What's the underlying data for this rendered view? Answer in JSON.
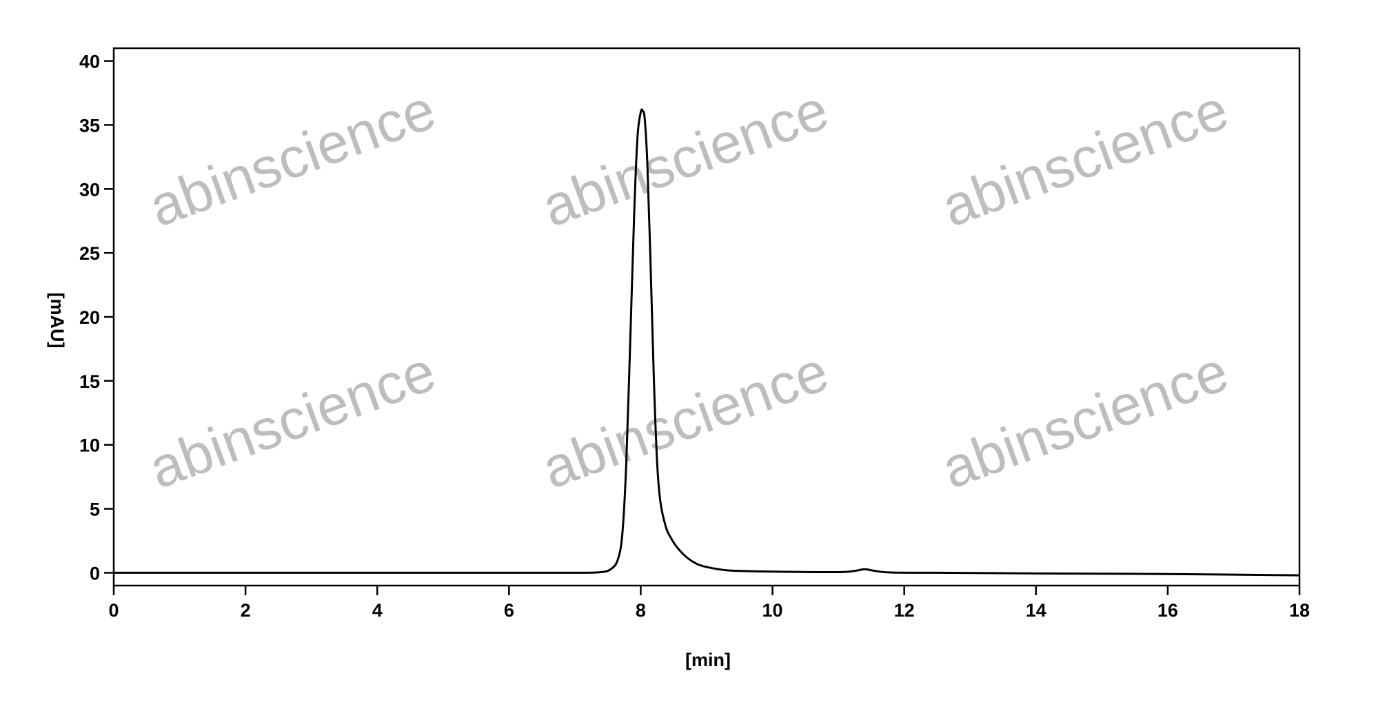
{
  "chart_data": {
    "type": "line",
    "title": "",
    "xlabel": "[min]",
    "ylabel": "[mAU]",
    "xlim": [
      0,
      18
    ],
    "ylim": [
      -1,
      41
    ],
    "xticks": [
      0,
      2,
      4,
      6,
      8,
      10,
      12,
      14,
      16,
      18
    ],
    "yticks": [
      0,
      5,
      10,
      15,
      20,
      25,
      30,
      35,
      40
    ],
    "grid": false,
    "line_color": "#000000",
    "series": [
      {
        "x": [
          0,
          2,
          4,
          6,
          7.0,
          7.4,
          7.55,
          7.65,
          7.72,
          7.78,
          7.84,
          7.9,
          7.95,
          8.0,
          8.03,
          8.06,
          8.1,
          8.15,
          8.2,
          8.25,
          8.3,
          8.38,
          8.45,
          8.55,
          8.7,
          8.85,
          9.0,
          9.3,
          9.7,
          10.2,
          11.0,
          11.25,
          11.4,
          11.55,
          11.8,
          12.5,
          14,
          16,
          18
        ],
        "y": [
          0,
          0,
          0,
          0,
          0,
          0.05,
          0.3,
          1.0,
          3.0,
          8.5,
          18.0,
          28.0,
          34.0,
          36.0,
          36.1,
          35.5,
          32.0,
          24.0,
          15.0,
          8.5,
          5.5,
          3.6,
          2.8,
          2.0,
          1.2,
          0.7,
          0.45,
          0.2,
          0.12,
          0.08,
          0.05,
          0.15,
          0.28,
          0.15,
          0.02,
          0.0,
          -0.05,
          -0.1,
          -0.2
        ]
      }
    ],
    "watermark": "abinscience"
  }
}
